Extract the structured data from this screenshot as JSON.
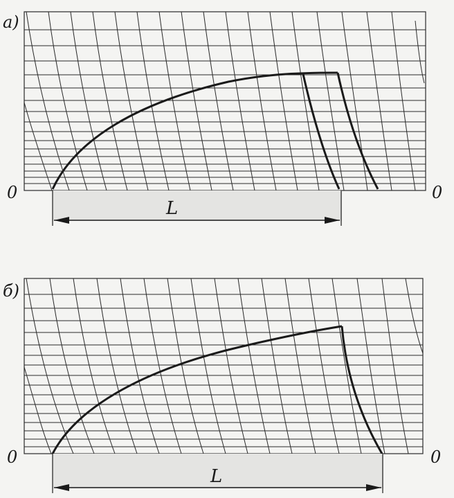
{
  "figure": {
    "panels": [
      {
        "id": "a",
        "label": "а)",
        "origin_left_label": "0",
        "origin_right_label": "0",
        "dimension_label": "L"
      },
      {
        "id": "b",
        "label": "б)",
        "origin_left_label": "0",
        "origin_right_label": "0",
        "dimension_label": "L"
      }
    ],
    "colors": {
      "ink": "#1a1a1a",
      "grid": "#2a2a2a",
      "background": "#f4f4f2",
      "dimension_band": "#e4e4e2"
    }
  }
}
